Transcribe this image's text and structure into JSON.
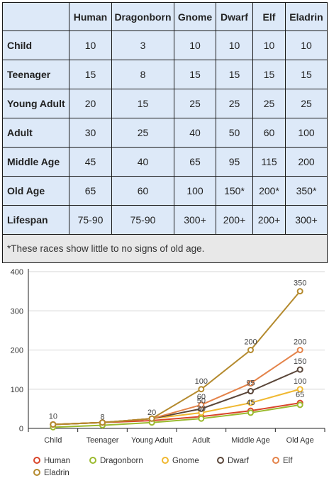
{
  "table": {
    "columns": [
      "Human",
      "Dragonborn",
      "Gnome",
      "Dwarf",
      "Elf",
      "Eladrin"
    ],
    "rows": [
      {
        "label": "Child",
        "values": [
          "10",
          "3",
          "10",
          "10",
          "10",
          "10"
        ]
      },
      {
        "label": "Teenager",
        "values": [
          "15",
          "8",
          "15",
          "15",
          "15",
          "15"
        ]
      },
      {
        "label": "Young Adult",
        "values": [
          "20",
          "15",
          "25",
          "25",
          "25",
          "25"
        ]
      },
      {
        "label": "Adult",
        "values": [
          "30",
          "25",
          "40",
          "50",
          "60",
          "100"
        ]
      },
      {
        "label": "Middle Age",
        "values": [
          "45",
          "40",
          "65",
          "95",
          "115",
          "200"
        ]
      },
      {
        "label": "Old Age",
        "values": [
          "65",
          "60",
          "100",
          "150*",
          "200*",
          "350*"
        ]
      },
      {
        "label": "Lifespan",
        "values": [
          "75-90",
          "75-90",
          "300+",
          "200+",
          "200+",
          "300+"
        ]
      }
    ],
    "note": "*These races show little to no signs of old age."
  },
  "chart_data": {
    "type": "line",
    "categories": [
      "Child",
      "Teenager",
      "Young Adult",
      "Adult",
      "Middle Age",
      "Old Age"
    ],
    "ylim": [
      0,
      400
    ],
    "yticks": [
      0,
      100,
      200,
      300,
      400
    ],
    "grid": true,
    "legend_position": "bottom-left",
    "series": [
      {
        "name": "Human",
        "color": "#d9452a",
        "values": [
          10,
          15,
          20,
          30,
          45,
          65
        ]
      },
      {
        "name": "Dragonborn",
        "color": "#9bba2e",
        "values": [
          3,
          8,
          15,
          25,
          40,
          60
        ]
      },
      {
        "name": "Gnome",
        "color": "#f0b830",
        "values": [
          10,
          15,
          25,
          40,
          65,
          100
        ]
      },
      {
        "name": "Dwarf",
        "color": "#5a4639",
        "values": [
          10,
          15,
          25,
          50,
          95,
          150
        ]
      },
      {
        "name": "Elf",
        "color": "#e4834a",
        "values": [
          10,
          15,
          25,
          60,
          115,
          200
        ]
      },
      {
        "name": "Eladrin",
        "color": "#b48a2e",
        "values": [
          10,
          15,
          25,
          100,
          200,
          350
        ]
      }
    ],
    "data_labels": [
      {
        "category": "Child",
        "value": 10,
        "text": "10"
      },
      {
        "category": "Teenager",
        "value": 8,
        "text": "8"
      },
      {
        "category": "Young Adult",
        "value": 20,
        "text": "20"
      },
      {
        "category": "Adult",
        "value": 100,
        "text": "100"
      },
      {
        "category": "Adult",
        "value": 60,
        "text": "60"
      },
      {
        "category": "Adult",
        "value": 50,
        "text": "50"
      },
      {
        "category": "Adult",
        "value": 30,
        "text": "30"
      },
      {
        "category": "Middle Age",
        "value": 200,
        "text": "200"
      },
      {
        "category": "Middle Age",
        "value": 95,
        "text": "95"
      },
      {
        "category": "Middle Age",
        "value": 45,
        "text": "45"
      },
      {
        "category": "Old Age",
        "value": 350,
        "text": "350"
      },
      {
        "category": "Old Age",
        "value": 200,
        "text": "200"
      },
      {
        "category": "Old Age",
        "value": 150,
        "text": "150"
      },
      {
        "category": "Old Age",
        "value": 100,
        "text": "100"
      },
      {
        "category": "Old Age",
        "value": 65,
        "text": "65"
      }
    ]
  }
}
